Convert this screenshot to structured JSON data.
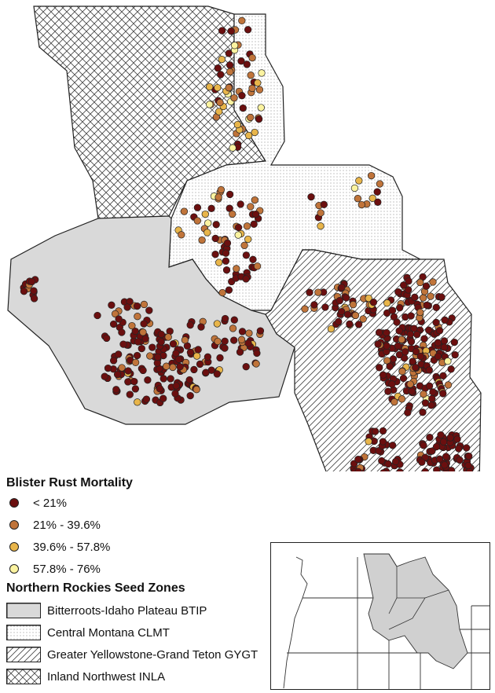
{
  "legend": {
    "mortality_title": "Blister Rust Mortality",
    "mortality_classes": [
      {
        "label": "< 21%",
        "color": "#6b0f0f"
      },
      {
        "label": "21% - 39.6%",
        "color": "#c0743a"
      },
      {
        "label": "39.6% - 57.8%",
        "color": "#e8b54a"
      },
      {
        "label": "57.8% - 76%",
        "color": "#fbf3a0"
      }
    ],
    "zones_title": "Northern Rockies Seed Zones",
    "zones": [
      {
        "label": "Bitterroots-Idaho Plateau BTIP",
        "pattern": "solid-gray",
        "color": "#d9d9d9"
      },
      {
        "label": "Central Montana CLMT",
        "pattern": "dots"
      },
      {
        "label": "Greater Yellowstone-Grand Teton GYGT",
        "pattern": "diagonal-hatch"
      },
      {
        "label": "Inland Northwest INLA",
        "pattern": "cross-hatch"
      }
    ]
  },
  "colors": {
    "outline": "#222222",
    "btip_fill": "#d9d9d9",
    "inset_states_fill": "#d0d0d0"
  }
}
